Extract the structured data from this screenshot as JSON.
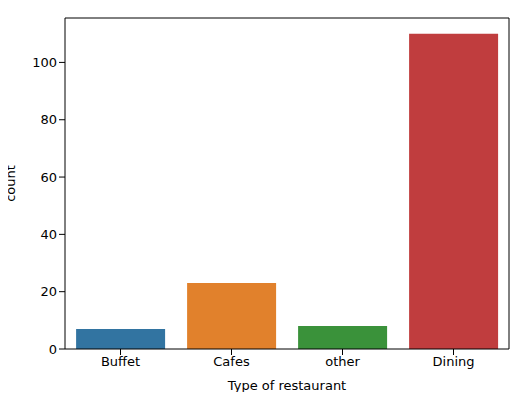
{
  "chart_data": {
    "type": "bar",
    "categories": [
      "Buffet",
      "Cafes",
      "other",
      "Dining"
    ],
    "values": [
      7,
      23,
      8,
      110
    ],
    "colors": [
      "#3274a1",
      "#e1812c",
      "#3a923a",
      "#c03d3e"
    ],
    "x_label": "Type of restaurant",
    "y_label": "count",
    "ylim": [
      0,
      115.5
    ],
    "yticks": [
      0,
      20,
      40,
      60,
      80,
      100
    ],
    "grid": false
  }
}
